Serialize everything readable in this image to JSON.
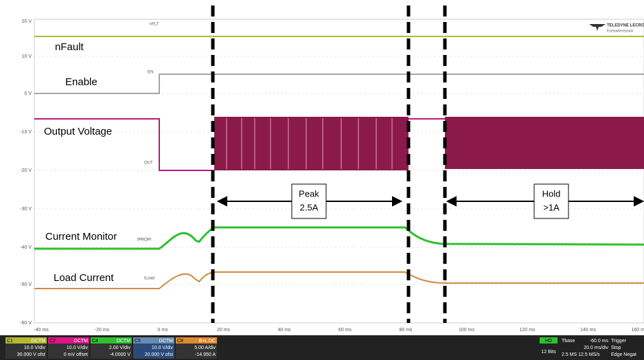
{
  "axes": {
    "y_labels": [
      "20 V",
      "10 V",
      "0 V",
      "-10 V",
      "-20 V",
      "-30 V",
      "-40 V",
      "-50 V",
      "-60 V"
    ],
    "x_labels": [
      "-40 ms",
      "-20 ms",
      "0 ms",
      "20 ms",
      "40 ms",
      "60 ms",
      "80 ms",
      "100 ms",
      "120 ms",
      "140 ms",
      "160 ms"
    ]
  },
  "traces": [
    {
      "label": "nFault",
      "tag": "nFLT"
    },
    {
      "label": "Enable",
      "tag": "EN"
    },
    {
      "label": "Output Voltage",
      "tag": "OUT"
    },
    {
      "label": "Current Monitor",
      "tag": "IPROPI"
    },
    {
      "label": "Load Current",
      "tag": "ILoad"
    }
  ],
  "annotations": [
    {
      "line1": "Peak",
      "line2": "2.5A"
    },
    {
      "line1": "Hold",
      "line2": ">1A"
    }
  ],
  "channels": [
    {
      "id": "C1",
      "coupling": "DCTM",
      "scale": "10.0 V/div",
      "offset": "30.000 V ofst"
    },
    {
      "id": "C2",
      "coupling": "DCTM",
      "scale": "10.0 V/div",
      "offset": "0 mV offset"
    },
    {
      "id": "C4",
      "coupling": "DCTM",
      "scale": "2.00 V/div",
      "offset": "-4.0000 V"
    },
    {
      "id": "C5",
      "coupling": "DCTM",
      "scale": "10.0 V/div",
      "offset": "20.000 V ofst"
    },
    {
      "id": "C8",
      "coupling": "B+L DC",
      "scale": "5.00 A/div",
      "offset": "-14.950 A"
    }
  ],
  "status": {
    "hd": "HD",
    "bits": "12 Bits",
    "tbase": "Tbase",
    "delay": "-60.0 ms",
    "div": "20.0 ms/div",
    "rate": "2.5 MS  12.5 MS/s",
    "trigger": "Trigger",
    "mode": "Stop",
    "type": "Edge  Negat"
  },
  "logo": {
    "name": "TELEDYNE LECRO",
    "slogan": "Everywhereyoulo"
  }
}
